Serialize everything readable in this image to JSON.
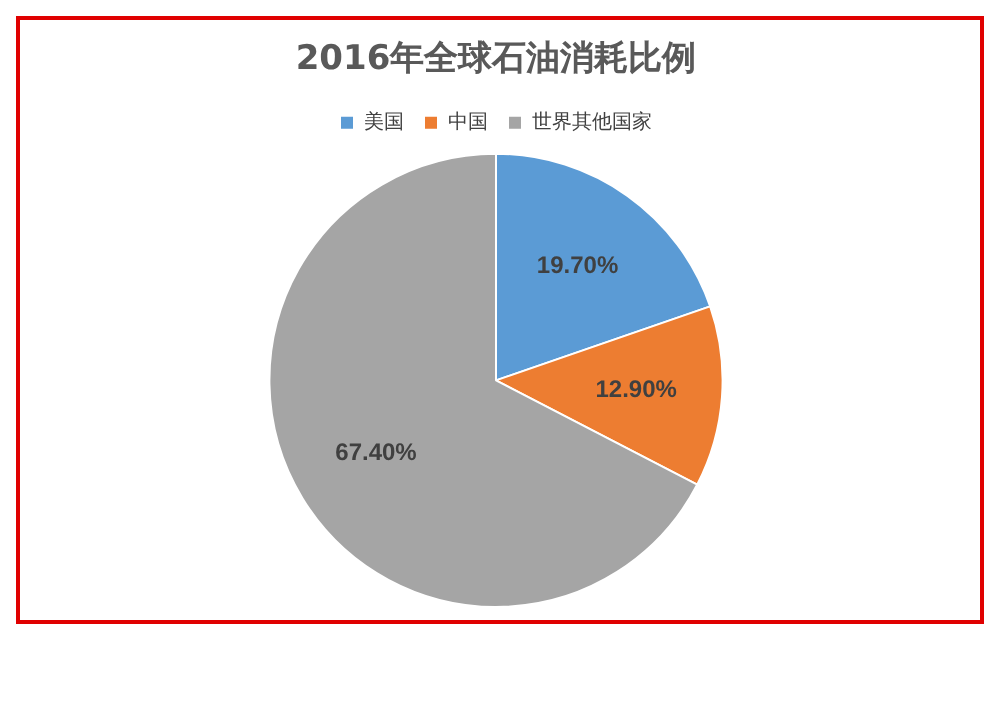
{
  "chart_data": {
    "type": "pie",
    "title": "2016年全球石油消耗比例",
    "categories": [
      "美国",
      "中国",
      "世界其他国家"
    ],
    "values": [
      19.7,
      12.9,
      67.4
    ],
    "colors": [
      "#5b9bd5",
      "#ed7d31",
      "#a5a5a5"
    ],
    "value_labels": [
      "19.70%",
      "12.90%",
      "67.40%"
    ],
    "legend": "top"
  }
}
